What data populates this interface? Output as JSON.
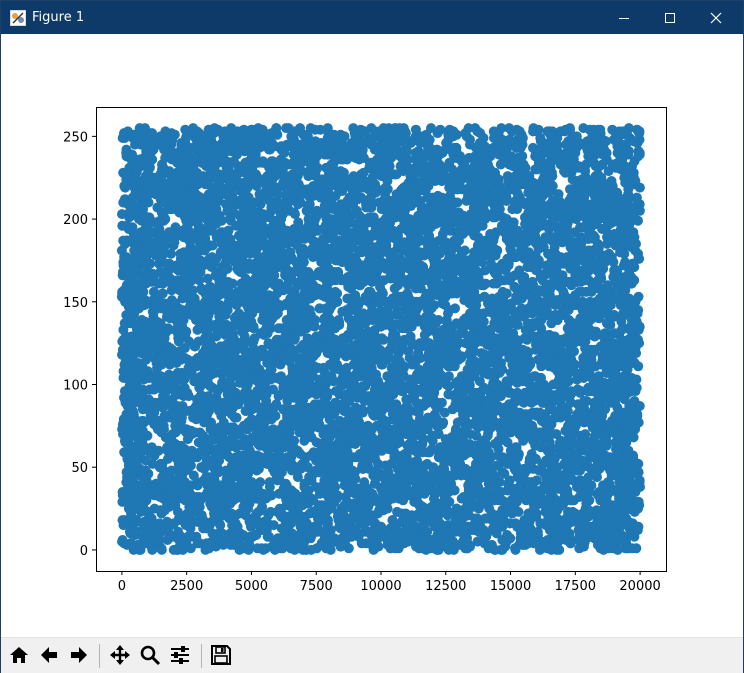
{
  "window": {
    "title": "Figure 1",
    "icons": [
      "figure-app-icon",
      "minimize-icon",
      "maximize-icon",
      "close-icon"
    ]
  },
  "toolbar": {
    "items": [
      "home-icon",
      "back-icon",
      "forward-icon",
      "pan-icon",
      "zoom-icon",
      "configure-subplots-icon",
      "save-icon"
    ]
  },
  "chart_data": {
    "type": "scatter",
    "title": "",
    "xlabel": "",
    "ylabel": "",
    "xlim": [
      -1000,
      21000
    ],
    "ylim": [
      -12.75,
      267.75
    ],
    "x_ticks": [
      0,
      2500,
      5000,
      7500,
      10000,
      12500,
      15000,
      17500,
      20000
    ],
    "x_tick_labels": [
      "0",
      "2500",
      "5000",
      "7500",
      "10000",
      "12500",
      "15000",
      "17500",
      "20000"
    ],
    "y_ticks": [
      0,
      50,
      100,
      150,
      200,
      250
    ],
    "y_tick_labels": [
      "0",
      "50",
      "100",
      "150",
      "200",
      "250"
    ],
    "grid": false,
    "legend": "none",
    "color": "#1f77b4",
    "series": [
      {
        "description_of_distribution": "",
        "x_range": [
          0,
          20000
        ],
        "y_range": [
          0,
          255
        ],
        "point_count_approx": 20000,
        "x_step": 1,
        "y_distribution": "uniform integer 0-255"
      }
    ]
  }
}
